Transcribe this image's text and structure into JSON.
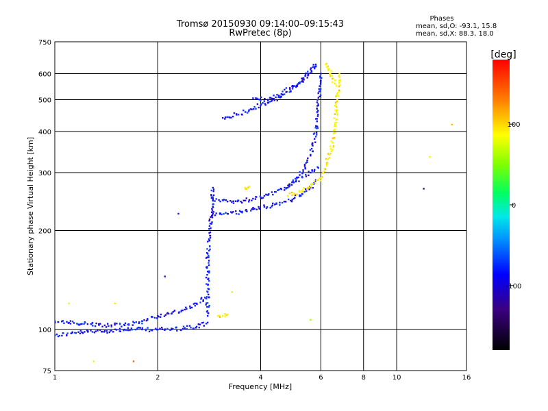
{
  "chart_data": {
    "type": "scatter",
    "title": "Tromsø 20150930 09:14:00–09:15:43",
    "subtitle": "RwPretec (8p)",
    "stats": {
      "heading": "Phases",
      "line_o": "mean, sd,O: -93.1, 15.8",
      "line_x": "mean, sd,X:  88.3, 18.0"
    },
    "xlabel": "Frequency [MHz]",
    "ylabel": "Stationary phase Virtual Height [km]",
    "x_scale": "log",
    "y_scale": "log",
    "xlim": [
      1,
      16
    ],
    "ylim": [
      75,
      750
    ],
    "x_ticks": [
      1,
      2,
      4,
      6,
      8,
      10,
      16
    ],
    "y_ticks": [
      75,
      100,
      200,
      300,
      400,
      500,
      600,
      750
    ],
    "grid": true,
    "colorbar": {
      "label": "[deg]",
      "range": [
        -180,
        180
      ],
      "ticks": [
        -100,
        0,
        100
      ]
    },
    "series": [
      {
        "mode": "O",
        "phase_deg": -100,
        "traces": [
          {
            "x": [
              1.0,
              1.2,
              1.4,
              1.6,
              1.8,
              2.0,
              2.2,
              2.4,
              2.6,
              2.8
            ],
            "y": [
              96,
              98,
              99,
              100,
              100,
              100,
              100,
              101,
              102,
              105
            ]
          },
          {
            "x": [
              1.0,
              1.2,
              1.4,
              1.6,
              1.8,
              2.0,
              2.2,
              2.4,
              2.6,
              2.75
            ],
            "y": [
              106,
              104,
              103,
              103,
              106,
              110,
              112,
              115,
              120,
              125
            ]
          },
          {
            "x": [
              2.8,
              2.8,
              2.8,
              2.8,
              2.85,
              2.85,
              2.9,
              2.9
            ],
            "y": [
              110,
              130,
              150,
              170,
              190,
              210,
              240,
              270
            ]
          },
          {
            "x": [
              2.9,
              3.2,
              3.5,
              3.8,
              4.1,
              4.4,
              4.7,
              5.0,
              5.3,
              5.6,
              5.8
            ],
            "y": [
              225,
              225,
              228,
              232,
              236,
              240,
              245,
              250,
              258,
              270,
              285
            ]
          },
          {
            "x": [
              2.9,
              3.2,
              3.5,
              3.8,
              4.1,
              4.4,
              4.7,
              5.0,
              5.3,
              5.6,
              5.9
            ],
            "y": [
              250,
              245,
              245,
              250,
              255,
              262,
              270,
              280,
              290,
              300,
              310
            ]
          },
          {
            "x": [
              4.8,
              5.1,
              5.4,
              5.6,
              5.75,
              5.85,
              5.9,
              5.95,
              6.0
            ],
            "y": [
              270,
              290,
              310,
              340,
              380,
              430,
              480,
              550,
              600
            ]
          },
          {
            "x": [
              3.1,
              3.4,
              3.7,
              4.0,
              4.3,
              4.6,
              4.9,
              5.2,
              5.5,
              5.8
            ],
            "y": [
              440,
              450,
              465,
              480,
              495,
              510,
              530,
              560,
              600,
              640
            ]
          },
          {
            "x": [
              3.8,
              4.2,
              4.6,
              5.0,
              5.4,
              5.8
            ],
            "y": [
              505,
              500,
              520,
              550,
              590,
              630
            ]
          }
        ]
      },
      {
        "mode": "X",
        "phase_deg": 100,
        "traces": [
          {
            "x": [
              4.8,
              5.2,
              5.6,
              5.9,
              6.1,
              6.3,
              6.5,
              6.6,
              6.7,
              6.8
            ],
            "y": [
              255,
              262,
              272,
              285,
              300,
              330,
              370,
              420,
              500,
              600
            ]
          },
          {
            "x": [
              6.2,
              6.3,
              6.4,
              6.5,
              6.6
            ],
            "y": [
              640,
              620,
              600,
              580,
              560
            ]
          },
          {
            "x": [
              3.0,
              3.1,
              3.2
            ],
            "y": [
              110,
              110,
              111
            ]
          },
          {
            "x": [
              3.6,
              3.7
            ],
            "y": [
              270,
              272
            ]
          }
        ]
      }
    ],
    "isolated_points": [
      {
        "x": 14.5,
        "y": 420,
        "phase_deg": 120
      },
      {
        "x": 12.5,
        "y": 335,
        "phase_deg": 100
      },
      {
        "x": 12.0,
        "y": 268,
        "phase_deg": -120
      },
      {
        "x": 1.3,
        "y": 80,
        "phase_deg": 100
      },
      {
        "x": 1.7,
        "y": 80,
        "phase_deg": 150
      },
      {
        "x": 1.1,
        "y": 120,
        "phase_deg": 100
      },
      {
        "x": 1.5,
        "y": 120,
        "phase_deg": 100
      },
      {
        "x": 3.3,
        "y": 130,
        "phase_deg": 80
      },
      {
        "x": 5.6,
        "y": 107,
        "phase_deg": 60
      },
      {
        "x": 2.3,
        "y": 225,
        "phase_deg": -100
      },
      {
        "x": 2.1,
        "y": 145,
        "phase_deg": -110
      }
    ]
  }
}
